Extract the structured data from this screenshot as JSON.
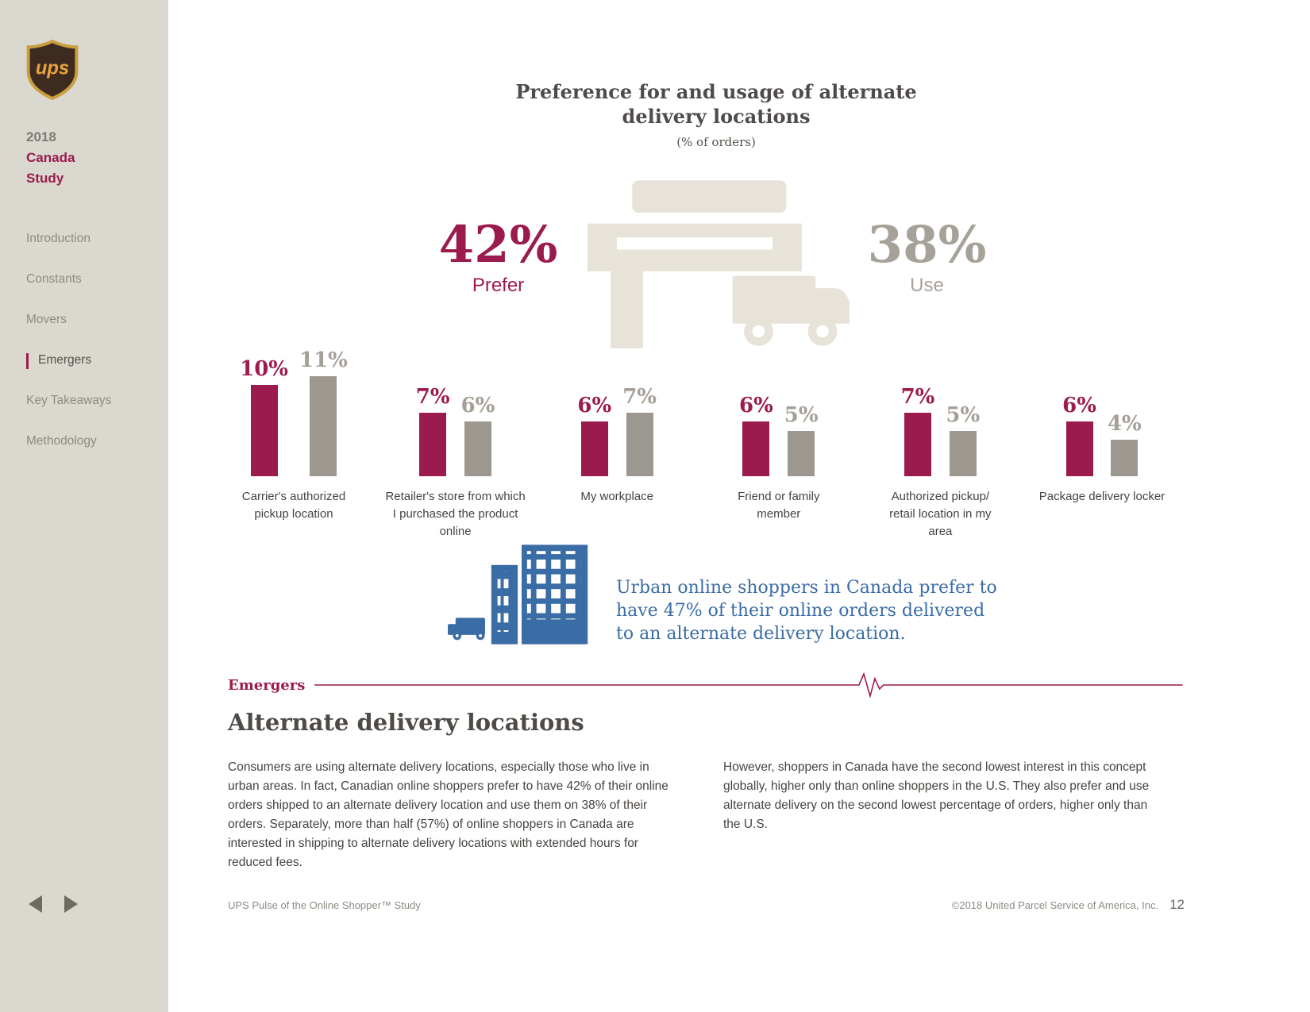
{
  "theme": {
    "maroon": "#9B1B4E",
    "bar_gray": "#9C978F",
    "icon_beige": "#E7E3D9",
    "blue": "#3A6CA5",
    "sidebar_bg": "#DBD8D0"
  },
  "sidebar": {
    "logo_text": "ups",
    "year": "2018",
    "study_line1": "Canada",
    "study_line2": "Study",
    "nav": [
      {
        "label": "Introduction"
      },
      {
        "label": "Constants"
      },
      {
        "label": "Movers"
      },
      {
        "label": "Emergers"
      },
      {
        "label": "Key Takeaways"
      },
      {
        "label": "Methodology"
      }
    ],
    "active_index": 3
  },
  "chart_data": {
    "type": "bar",
    "title": "Preference for and usage of alternate delivery locations",
    "title_lines": [
      "Preference for and usage of alternate",
      "delivery locations"
    ],
    "subtitle": "(% of orders)",
    "categories": [
      "Carrier's authorized pickup location",
      "Retailer's store from which I purchased the product online",
      "My workplace",
      "Friend or family member",
      "Authorized pickup/ retail location in my area",
      "Package delivery locker"
    ],
    "series": [
      {
        "name": "Prefer",
        "color": "#9B1B4E",
        "values": [
          10,
          7,
          6,
          6,
          7,
          6
        ]
      },
      {
        "name": "Use",
        "color": "#9C978F",
        "values": [
          11,
          6,
          7,
          5,
          5,
          4
        ]
      }
    ],
    "ylim": [
      0,
      12
    ],
    "legend_position": "headline",
    "grid": false,
    "headline": {
      "prefer_value": "42%",
      "prefer_label": "Prefer",
      "use_value": "38%",
      "use_label": "Use"
    }
  },
  "callout": {
    "lines": [
      "Urban online shoppers in Canada prefer to",
      "have 47% of their online orders delivered",
      "to an alternate delivery location."
    ]
  },
  "section": {
    "divider_label": "Emergers",
    "heading": "Alternate delivery locations",
    "col1": "Consumers are using alternate delivery locations, especially those who live in urban areas. In fact, Canadian online shoppers prefer to have 42% of their online orders shipped to an alternate delivery location and use them on 38% of their orders. Separately, more than half (57%) of online shoppers in Canada are interested in shipping to alternate delivery locations with extended hours for reduced fees.",
    "col2": "However, shoppers in Canada have the second lowest interest in this concept globally, higher only than online shoppers in the U.S. They also prefer and use alternate delivery on the second lowest percentage of orders, higher only than the U.S."
  },
  "footer": {
    "left": "UPS Pulse of the Online Shopper™ Study",
    "right": "©2018 United Parcel Service of America, Inc.",
    "page": "12"
  }
}
